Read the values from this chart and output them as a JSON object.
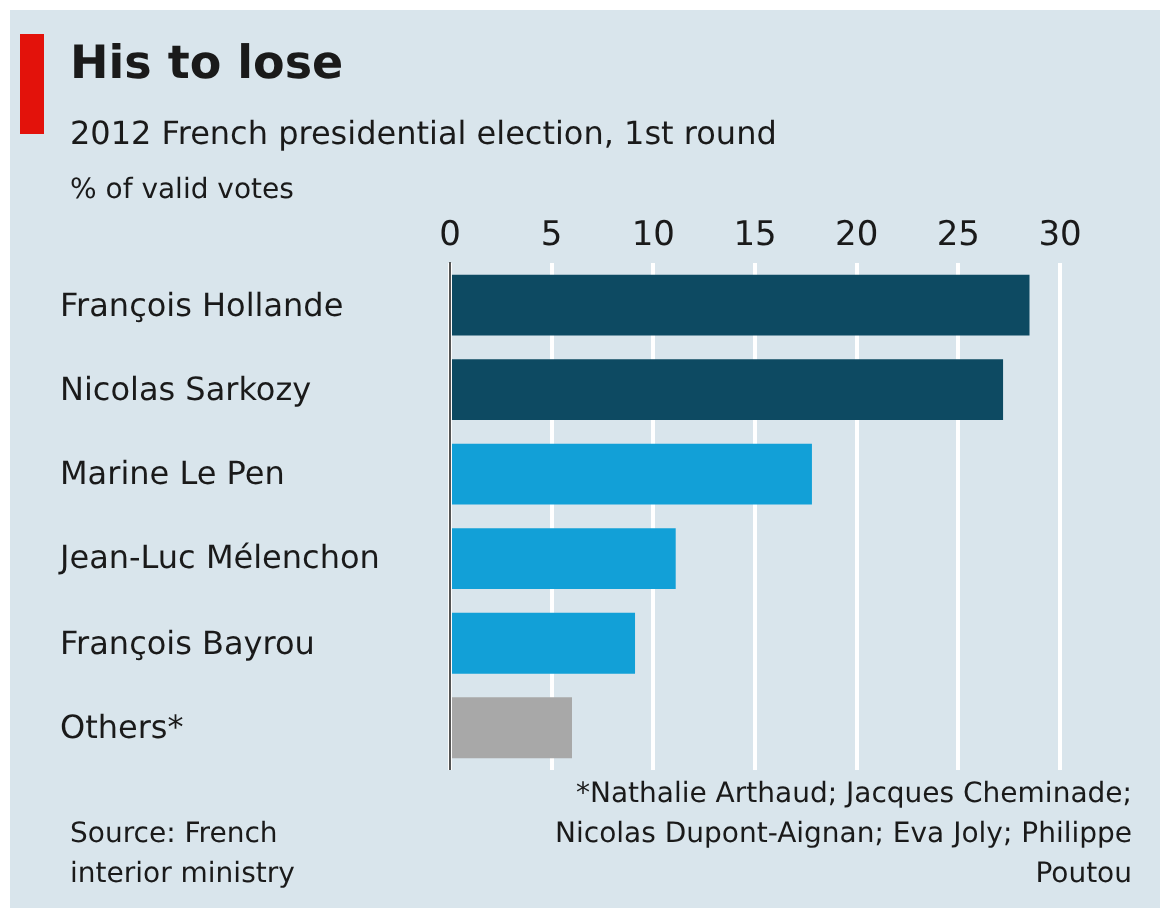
{
  "chart_data": {
    "type": "bar",
    "orientation": "horizontal",
    "title": "His to lose",
    "subtitle": "2012 French presidential election, 1st round",
    "xlabel": "% of valid votes",
    "categories": [
      "François Hollande",
      "Nicolas Sarkozy",
      "Marine Le Pen",
      "Jean-Luc Mélenchon",
      "François Bayrou",
      "Others*"
    ],
    "values": [
      28.5,
      27.2,
      17.8,
      11.1,
      9.1,
      6.0
    ],
    "colors": [
      "#0d4a62",
      "#0d4a62",
      "#12a0d7",
      "#12a0d7",
      "#12a0d7",
      "#a8a8a8"
    ],
    "xlim": [
      0,
      30
    ],
    "xticks": [
      0,
      5,
      10,
      15,
      20,
      25,
      30
    ],
    "grid": "x",
    "annotations": [
      "*Nathalie Arthaud; Jacques Cheminade; Nicolas Dupont-Aignan; Eva Joly; Philippe Poutou",
      "Source: French interior ministry"
    ]
  }
}
